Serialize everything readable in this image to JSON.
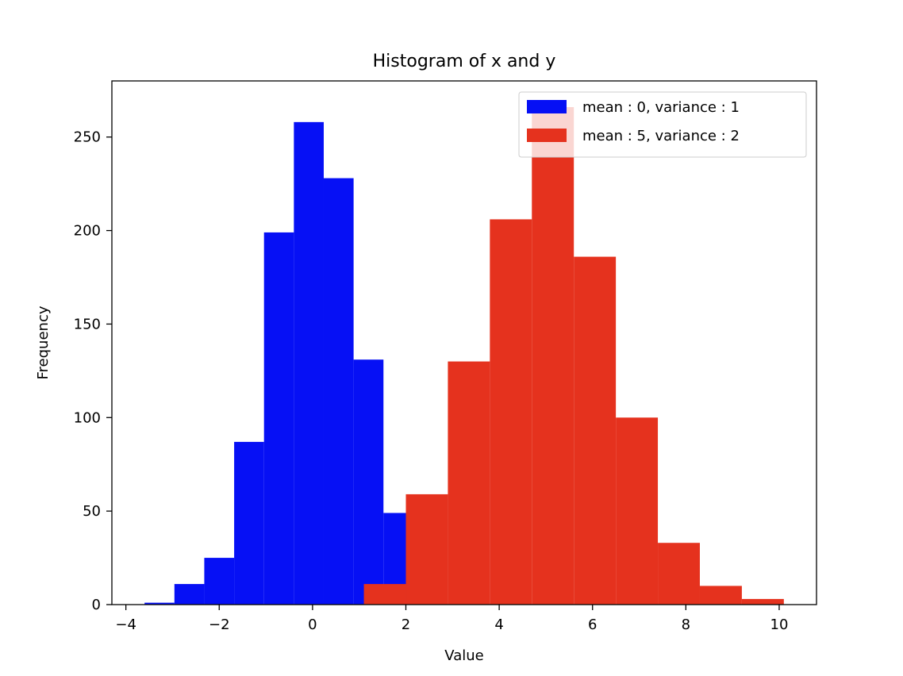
{
  "chart_data": {
    "type": "bar",
    "title": "Histogram of x and y",
    "xlabel": "Value",
    "ylabel": "Frequency",
    "xlim": [
      -4.3,
      10.8
    ],
    "ylim": [
      0,
      280
    ],
    "xticks": [
      -4,
      -2,
      0,
      2,
      4,
      6,
      8,
      10
    ],
    "xtick_labels": [
      "−4",
      "−2",
      "0",
      "2",
      "4",
      "6",
      "8",
      "10"
    ],
    "yticks": [
      0,
      50,
      100,
      150,
      200,
      250
    ],
    "ytick_labels": [
      "0",
      "50",
      "100",
      "150",
      "200",
      "250"
    ],
    "grid": false,
    "legend_position": "top-right",
    "series": [
      {
        "name": "mean : 0, variance : 1",
        "color": "#0610f5",
        "bin_edges": [
          -3.6,
          -2.96,
          -2.32,
          -1.68,
          -1.04,
          -0.4,
          0.24,
          0.88,
          1.52,
          2.16,
          2.8
        ],
        "counts": [
          1,
          11,
          25,
          87,
          199,
          258,
          228,
          131,
          49,
          11
        ]
      },
      {
        "name": "mean : 5, variance : 2",
        "color": "#e5321e",
        "bin_edges": [
          1.1,
          2.0,
          2.9,
          3.8,
          4.7,
          5.6,
          6.5,
          7.4,
          8.3,
          9.2,
          10.1
        ],
        "counts": [
          11,
          59,
          130,
          206,
          266,
          186,
          100,
          33,
          10,
          3
        ]
      }
    ]
  }
}
